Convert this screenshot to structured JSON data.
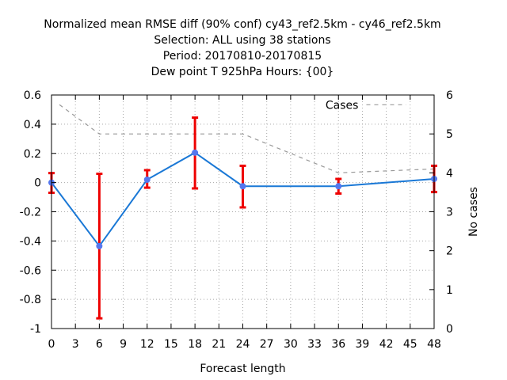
{
  "chart_data": {
    "type": "line",
    "title_lines": [
      "Normalized mean RMSE diff (90% conf) cy43_ref2.5km - cy46_ref2.5km",
      "Selection: ALL using    38 stations",
      "Period: 20170810-20170815",
      "Dew point T 925hPa   Hours: {00}"
    ],
    "xlabel": "Forecast length",
    "ylabel": "",
    "y2label": "No cases",
    "xlim": [
      0,
      48
    ],
    "ylim": [
      -1,
      0.6
    ],
    "y2lim": [
      0,
      6
    ],
    "xticks": [
      0,
      3,
      6,
      9,
      12,
      15,
      18,
      21,
      24,
      27,
      30,
      33,
      36,
      39,
      42,
      45,
      48
    ],
    "yticks": [
      -1,
      -0.8,
      -0.6,
      -0.4,
      -0.2,
      0,
      0.2,
      0.4,
      0.6
    ],
    "ytick_labels": [
      "-1",
      "-0.8",
      "-0.6",
      "-0.4",
      "-0.2",
      "0",
      "0.2",
      "0.4",
      "0.6"
    ],
    "y2ticks": [
      0,
      1,
      2,
      3,
      4,
      5,
      6
    ],
    "grid": true,
    "legend_position": "top-right",
    "series": [
      {
        "type": "line-errorbar",
        "color": "#1a78d6",
        "marker_color": "#5577ee",
        "error_color": "#ee0000",
        "x": [
          0,
          6,
          12,
          18,
          24,
          36,
          48
        ],
        "y": [
          0.0,
          -0.435,
          0.02,
          0.205,
          -0.025,
          -0.025,
          0.025
        ],
        "err_low": [
          -0.07,
          -0.93,
          -0.035,
          -0.04,
          -0.17,
          -0.075,
          -0.065
        ],
        "err_high": [
          0.065,
          0.06,
          0.085,
          0.445,
          0.115,
          0.025,
          0.115
        ]
      },
      {
        "name": "Cases",
        "type": "line-dashed",
        "axis": "y2",
        "color": "#999999",
        "x": [
          1,
          6,
          24,
          36,
          48
        ],
        "y": [
          5.75,
          5.0,
          5.0,
          4.0,
          4.1
        ]
      }
    ],
    "legend_sample": {
      "x": [
        39.5,
        44.5
      ],
      "y2": 5.75
    }
  }
}
